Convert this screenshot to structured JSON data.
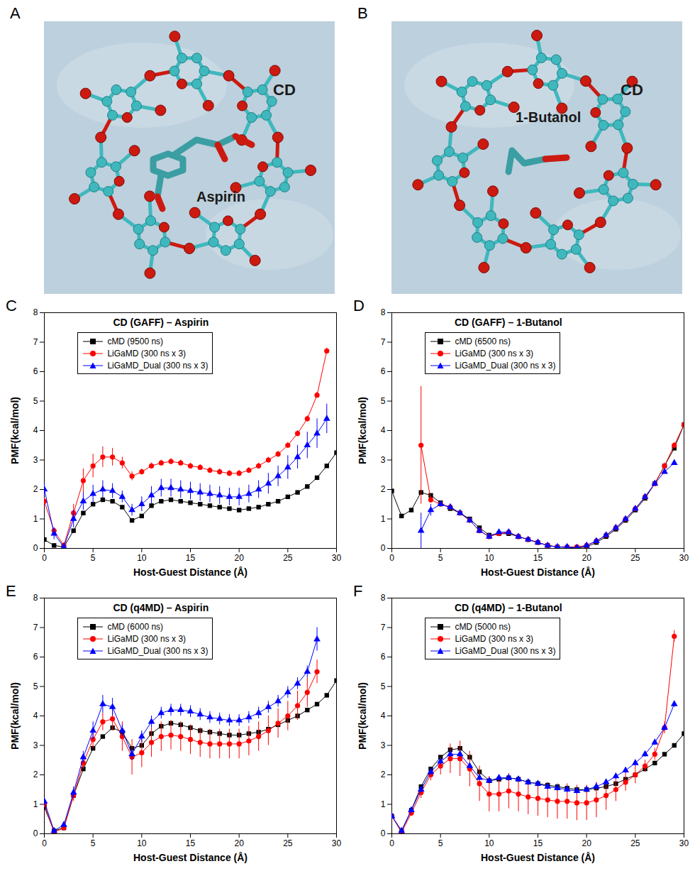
{
  "structures": [
    {
      "panel": "A",
      "host": "CD",
      "guest": "Aspirin"
    },
    {
      "panel": "B",
      "host": "CD",
      "guest": "1-Butanol"
    }
  ],
  "chart_data": [
    {
      "type": "line",
      "panel": "C",
      "title": "CD (GAFF) – Aspirin",
      "x_label": "Host-Guest Distance (Å)",
      "y_label": "PMF(kcal/mol)",
      "xlim": [
        0,
        30
      ],
      "xticks": [
        0,
        5,
        10,
        15,
        20,
        25,
        30
      ],
      "ylim": [
        0,
        8
      ],
      "yticks": [
        0,
        1,
        2,
        3,
        4,
        5,
        6,
        7,
        8
      ],
      "legend": "top-left",
      "x": [
        0,
        1,
        2,
        3,
        4,
        5,
        6,
        7,
        8,
        9,
        10,
        11,
        12,
        13,
        14,
        15,
        16,
        17,
        18,
        19,
        20,
        21,
        22,
        23,
        24,
        25,
        26,
        27,
        28,
        29,
        30
      ],
      "series": [
        {
          "name": "cMD (9500 ns)",
          "color": "#000000",
          "marker": "square",
          "values": [
            0.3,
            0.1,
            0.05,
            0.6,
            1.2,
            1.5,
            1.65,
            1.6,
            1.4,
            0.95,
            1.1,
            1.45,
            1.6,
            1.65,
            1.6,
            1.55,
            1.5,
            1.45,
            1.4,
            1.35,
            1.3,
            1.35,
            1.4,
            1.5,
            1.6,
            1.75,
            1.9,
            2.1,
            2.4,
            2.8,
            3.25
          ]
        },
        {
          "name": "LiGaMD (300 ns x 3)",
          "color": "#ff0000",
          "marker": "circle",
          "values": [
            1.6,
            0.6,
            0.1,
            1.2,
            2.3,
            2.8,
            3.1,
            3.1,
            2.9,
            2.45,
            2.6,
            2.8,
            2.9,
            2.95,
            2.9,
            2.8,
            2.75,
            2.65,
            2.6,
            2.55,
            2.55,
            2.65,
            2.8,
            3.0,
            3.2,
            3.5,
            3.9,
            4.4,
            5.2,
            6.7,
            null
          ],
          "errors": [
            0.1,
            0.1,
            0.1,
            0.3,
            0.4,
            0.4,
            0.35,
            0.3,
            0.2,
            0.15,
            0.1,
            0.1,
            0.1,
            0.1,
            0.1,
            0.1,
            0.1,
            0.1,
            0.1,
            0.1,
            0.1,
            0.1,
            0.1,
            0.1,
            0.1,
            0.1,
            0.1,
            0.1,
            0.1,
            0.1,
            null
          ]
        },
        {
          "name": "LiGaMD_Dual (300 ns x 3)",
          "color": "#0000ff",
          "marker": "triangle",
          "values": [
            2.0,
            0.5,
            0.05,
            1.0,
            1.6,
            1.85,
            2.0,
            1.95,
            1.75,
            1.3,
            1.5,
            1.8,
            2.05,
            2.05,
            2.0,
            1.95,
            1.9,
            1.85,
            1.8,
            1.75,
            1.75,
            1.85,
            2.0,
            2.2,
            2.45,
            2.75,
            3.1,
            3.5,
            3.9,
            4.4,
            null
          ],
          "errors": [
            0.2,
            0.2,
            0.1,
            0.3,
            0.3,
            0.3,
            0.3,
            0.25,
            0.2,
            0.2,
            0.25,
            0.3,
            0.3,
            0.3,
            0.3,
            0.3,
            0.3,
            0.3,
            0.3,
            0.3,
            0.3,
            0.3,
            0.3,
            0.35,
            0.35,
            0.4,
            0.4,
            0.45,
            0.5,
            0.5,
            null
          ]
        }
      ]
    },
    {
      "type": "line",
      "panel": "D",
      "title": "CD (GAFF) – 1-Butanol",
      "x_label": "Host-Guest Distance (Å)",
      "y_label": "PMF(kcal/mol)",
      "xlim": [
        0,
        30
      ],
      "xticks": [
        0,
        5,
        10,
        15,
        20,
        25,
        30
      ],
      "ylim": [
        0,
        8
      ],
      "yticks": [
        0,
        1,
        2,
        3,
        4,
        5,
        6,
        7,
        8
      ],
      "legend": "top-left",
      "x": [
        0,
        1,
        2,
        3,
        4,
        5,
        6,
        7,
        8,
        9,
        10,
        11,
        12,
        13,
        14,
        15,
        16,
        17,
        18,
        19,
        20,
        21,
        22,
        23,
        24,
        25,
        26,
        27,
        28,
        29,
        30
      ],
      "series": [
        {
          "name": "cMD (6500 ns)",
          "color": "#000000",
          "marker": "square",
          "values": [
            1.95,
            1.1,
            1.3,
            1.9,
            1.8,
            1.55,
            1.35,
            1.2,
            1.0,
            0.7,
            0.45,
            0.5,
            0.5,
            0.4,
            0.3,
            0.2,
            0.1,
            0.05,
            0.03,
            0.02,
            0.05,
            0.2,
            0.4,
            0.65,
            0.95,
            1.3,
            1.7,
            2.2,
            2.8,
            3.4,
            4.2
          ]
        },
        {
          "name": "LiGaMD (300 ns x 3)",
          "color": "#ff0000",
          "marker": "circle",
          "values": [
            null,
            null,
            null,
            3.5,
            1.65,
            1.5,
            1.4,
            1.2,
            0.95,
            0.6,
            0.4,
            0.5,
            0.55,
            0.4,
            0.3,
            0.2,
            0.1,
            0.05,
            0.05,
            0.05,
            0.1,
            0.25,
            0.45,
            0.7,
            1.0,
            1.35,
            1.75,
            2.2,
            2.8,
            3.5,
            4.2
          ],
          "errors": [
            null,
            null,
            null,
            2.0,
            0.1,
            0.05,
            0.05,
            0.05,
            0.05,
            0.05,
            0.05,
            0.05,
            0.05,
            0.05,
            0.05,
            0.05,
            0.05,
            0.05,
            0.05,
            0.05,
            0.05,
            0.05,
            0.05,
            0.05,
            0.05,
            0.05,
            0.05,
            0.1,
            0.1,
            0.1,
            0.1
          ]
        },
        {
          "name": "LiGaMD_Dual (300 ns x 3)",
          "color": "#0000ff",
          "marker": "triangle",
          "values": [
            null,
            null,
            null,
            0.6,
            1.3,
            1.5,
            1.4,
            1.2,
            0.95,
            0.6,
            0.4,
            0.55,
            0.55,
            0.4,
            0.3,
            0.2,
            0.1,
            0.05,
            0.05,
            0.02,
            0.1,
            0.25,
            0.45,
            0.7,
            1.0,
            1.35,
            1.75,
            2.2,
            2.6,
            2.9,
            null
          ],
          "errors": [
            null,
            null,
            null,
            0.6,
            0.2,
            0.05,
            0.05,
            0.05,
            0.05,
            0.05,
            0.05,
            0.05,
            0.05,
            0.05,
            0.05,
            0.05,
            0.05,
            0.05,
            0.05,
            0.05,
            0.05,
            0.05,
            0.05,
            0.05,
            0.05,
            0.05,
            0.05,
            0.05,
            0.05,
            0.05,
            null
          ]
        }
      ]
    },
    {
      "type": "line",
      "panel": "E",
      "title": "CD (q4MD) – Aspirin",
      "x_label": "Host-Guest Distance (Å)",
      "y_label": "PMF(kcal/mol)",
      "xlim": [
        0,
        30
      ],
      "xticks": [
        0,
        5,
        10,
        15,
        20,
        25,
        30
      ],
      "ylim": [
        0,
        8
      ],
      "yticks": [
        0,
        1,
        2,
        3,
        4,
        5,
        6,
        7,
        8
      ],
      "legend": "top-left",
      "x": [
        0,
        1,
        2,
        3,
        4,
        5,
        6,
        7,
        8,
        9,
        10,
        11,
        12,
        13,
        14,
        15,
        16,
        17,
        18,
        19,
        20,
        21,
        22,
        23,
        24,
        25,
        26,
        27,
        28,
        29,
        30
      ],
      "series": [
        {
          "name": "cMD (6000 ns)",
          "color": "#000000",
          "marker": "square",
          "values": [
            0.9,
            0.1,
            0.2,
            1.3,
            2.2,
            2.9,
            3.3,
            3.6,
            3.45,
            2.9,
            3.0,
            3.4,
            3.65,
            3.75,
            3.7,
            3.6,
            3.5,
            3.45,
            3.4,
            3.35,
            3.35,
            3.4,
            3.45,
            3.55,
            3.7,
            3.85,
            4.0,
            4.2,
            4.4,
            4.7,
            5.2
          ]
        },
        {
          "name": "LiGaMD (300 ns x 3)",
          "color": "#ff0000",
          "marker": "circle",
          "values": [
            1.0,
            0.05,
            0.2,
            1.3,
            2.4,
            3.2,
            3.8,
            3.9,
            3.3,
            2.6,
            2.75,
            3.1,
            3.3,
            3.35,
            3.3,
            3.2,
            3.1,
            3.05,
            3.05,
            3.05,
            3.05,
            3.15,
            3.3,
            3.5,
            3.75,
            4.0,
            4.35,
            4.8,
            5.5,
            null,
            null
          ],
          "errors": [
            0.1,
            0.1,
            0.1,
            0.2,
            0.2,
            0.3,
            0.3,
            0.4,
            0.5,
            0.6,
            0.5,
            0.5,
            0.5,
            0.5,
            0.5,
            0.5,
            0.5,
            0.5,
            0.5,
            0.5,
            0.5,
            0.5,
            0.5,
            0.5,
            0.5,
            0.5,
            0.5,
            0.5,
            0.4,
            null,
            null
          ]
        },
        {
          "name": "LiGaMD_Dual (300 ns x 3)",
          "color": "#0000ff",
          "marker": "triangle",
          "values": [
            1.1,
            0.1,
            0.3,
            1.4,
            2.6,
            3.5,
            4.4,
            4.3,
            3.5,
            2.7,
            3.3,
            3.8,
            4.1,
            4.2,
            4.2,
            4.15,
            4.05,
            3.95,
            3.9,
            3.85,
            3.85,
            3.95,
            4.1,
            4.3,
            4.5,
            4.8,
            5.1,
            5.5,
            6.6,
            null,
            null
          ],
          "errors": [
            0.1,
            0.1,
            0.1,
            0.2,
            0.2,
            0.3,
            0.3,
            0.3,
            0.2,
            0.2,
            0.2,
            0.2,
            0.2,
            0.2,
            0.2,
            0.2,
            0.2,
            0.2,
            0.2,
            0.2,
            0.2,
            0.2,
            0.2,
            0.2,
            0.2,
            0.2,
            0.2,
            0.2,
            0.4,
            null,
            null
          ]
        }
      ]
    },
    {
      "type": "line",
      "panel": "F",
      "title": "CD (q4MD) – 1-Butanol",
      "x_label": "Host-Guest Distance (Å)",
      "y_label": "PMF(kcal/mol)",
      "xlim": [
        0,
        30
      ],
      "xticks": [
        0,
        5,
        10,
        15,
        20,
        25,
        30
      ],
      "ylim": [
        0,
        8
      ],
      "yticks": [
        0,
        1,
        2,
        3,
        4,
        5,
        6,
        7,
        8
      ],
      "legend": "top-left",
      "x": [
        0,
        1,
        2,
        3,
        4,
        5,
        6,
        7,
        8,
        9,
        10,
        11,
        12,
        13,
        14,
        15,
        16,
        17,
        18,
        19,
        20,
        21,
        22,
        23,
        24,
        25,
        26,
        27,
        28,
        29,
        30
      ],
      "series": [
        {
          "name": "cMD (5000 ns)",
          "color": "#000000",
          "marker": "square",
          "values": [
            0.6,
            0.1,
            0.8,
            1.6,
            2.2,
            2.6,
            2.85,
            2.9,
            2.6,
            2.1,
            1.8,
            1.85,
            1.9,
            1.85,
            1.75,
            1.7,
            1.65,
            1.6,
            1.55,
            1.5,
            1.5,
            1.55,
            1.6,
            1.7,
            1.85,
            2.0,
            2.2,
            2.4,
            2.7,
            3.0,
            3.4
          ]
        },
        {
          "name": "LiGaMD (300 ns x 3)",
          "color": "#ff0000",
          "marker": "circle",
          "values": [
            0.6,
            0.05,
            0.7,
            1.4,
            2.0,
            2.3,
            2.55,
            2.55,
            2.2,
            1.7,
            1.35,
            1.35,
            1.45,
            1.35,
            1.25,
            1.2,
            1.15,
            1.1,
            1.1,
            1.05,
            1.05,
            1.15,
            1.3,
            1.5,
            1.75,
            2.0,
            2.3,
            2.7,
            3.6,
            6.7,
            null
          ],
          "errors": [
            0.1,
            0.1,
            0.1,
            0.2,
            0.2,
            0.3,
            0.5,
            0.6,
            0.6,
            0.6,
            0.6,
            0.6,
            0.6,
            0.6,
            0.6,
            0.6,
            0.6,
            0.6,
            0.6,
            0.6,
            0.6,
            0.6,
            0.5,
            0.4,
            0.3,
            0.3,
            0.2,
            0.2,
            0.2,
            0.2,
            null
          ]
        },
        {
          "name": "LiGaMD_Dual (300 ns x 3)",
          "color": "#0000ff",
          "marker": "triangle",
          "values": [
            0.6,
            0.1,
            0.8,
            1.5,
            2.1,
            2.45,
            2.7,
            2.7,
            2.3,
            1.9,
            1.8,
            1.9,
            1.9,
            1.85,
            1.75,
            1.7,
            1.6,
            1.55,
            1.5,
            1.45,
            1.5,
            1.6,
            1.75,
            1.95,
            2.15,
            2.4,
            2.7,
            3.1,
            3.6,
            4.4,
            null
          ],
          "errors": [
            0.1,
            0.1,
            0.1,
            0.1,
            0.1,
            0.1,
            0.1,
            0.1,
            0.1,
            0.1,
            0.1,
            0.1,
            0.1,
            0.1,
            0.1,
            0.1,
            0.1,
            0.1,
            0.1,
            0.1,
            0.1,
            0.1,
            0.1,
            0.1,
            0.1,
            0.1,
            0.1,
            0.1,
            0.1,
            0.1,
            null
          ]
        }
      ]
    }
  ]
}
